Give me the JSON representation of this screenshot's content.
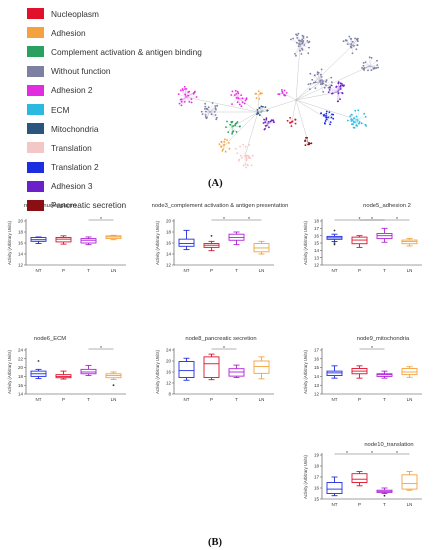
{
  "panel_a": {
    "label": "(A)",
    "legend": [
      {
        "label": "Nucleoplasm",
        "color": "#e0112b"
      },
      {
        "label": "Adhesion",
        "color": "#f4a23f"
      },
      {
        "label": "Complement activation & antigen binding",
        "color": "#2aa15e"
      },
      {
        "label": "Without function",
        "color": "#7d7fa3"
      },
      {
        "label": "Adhesion 2",
        "color": "#e22ce0"
      },
      {
        "label": "ECM",
        "color": "#2ab9e1"
      },
      {
        "label": "Mitochondria",
        "color": "#2b557f"
      },
      {
        "label": "Translation",
        "color": "#f4c7c7"
      },
      {
        "label": "Translation 2",
        "color": "#1b2ee0"
      },
      {
        "label": "Adhesion 3",
        "color": "#6b20c9"
      },
      {
        "label": "Pancreatic secretion",
        "color": "#8a0f12"
      }
    ]
  },
  "panel_b": {
    "label": "(B)"
  },
  "chart_data": [
    {
      "type": "box",
      "title": "node1_nucleoplasm",
      "ylabel": "Activity (Arbitrary Units)",
      "categories": [
        "NT",
        "P",
        "T",
        "LN"
      ],
      "ylim": [
        12,
        20
      ],
      "yticks": [
        12,
        14,
        16,
        18,
        20
      ],
      "colors": [
        "#1f2fe0",
        "#e0112b",
        "#b121d8",
        "#f4a23f"
      ],
      "boxes": [
        {
          "min": 15.9,
          "q1": 16.3,
          "median": 16.6,
          "q3": 17.0,
          "max": 17.1
        },
        {
          "min": 15.8,
          "q1": 16.2,
          "median": 16.7,
          "q3": 17.0,
          "max": 17.3
        },
        {
          "min": 15.7,
          "q1": 16.0,
          "median": 16.5,
          "q3": 16.8,
          "max": 17.1
        },
        {
          "min": 16.6,
          "q1": 16.8,
          "median": 17.1,
          "q3": 17.3,
          "max": 17.4
        }
      ],
      "outliers": [
        [],
        [],
        [],
        []
      ],
      "significance": [
        {
          "from": 2,
          "to": 3,
          "label": "*"
        }
      ]
    },
    {
      "type": "box",
      "title": "node3_complement activation & antigen presentation",
      "ylabel": "Activity (Arbitrary Units)",
      "categories": [
        "NT",
        "P",
        "T",
        "LN"
      ],
      "ylim": [
        12,
        20
      ],
      "yticks": [
        12,
        14,
        16,
        18,
        20
      ],
      "colors": [
        "#1f2fe0",
        "#e0112b",
        "#b121d8",
        "#f4a23f"
      ],
      "boxes": [
        {
          "min": 14.8,
          "q1": 15.4,
          "median": 15.9,
          "q3": 16.7,
          "max": 18.3
        },
        {
          "min": 14.6,
          "q1": 15.2,
          "median": 15.6,
          "q3": 15.9,
          "max": 16.3
        },
        {
          "min": 15.7,
          "q1": 16.5,
          "median": 17.0,
          "q3": 17.6,
          "max": 18.0
        },
        {
          "min": 14.0,
          "q1": 14.4,
          "median": 15.1,
          "q3": 15.9,
          "max": 16.3
        }
      ],
      "outliers": [
        [],
        [
          17.3
        ],
        [],
        []
      ],
      "significance": [
        {
          "from": 1,
          "to": 2,
          "label": "*"
        },
        {
          "from": 2,
          "to": 3,
          "label": "*"
        }
      ]
    },
    {
      "type": "box",
      "title": "node5_adhesion 2",
      "ylabel": "Activity (Arbitrary Units)",
      "categories": [
        "NT",
        "P",
        "T",
        "LN"
      ],
      "ylim": [
        12,
        18
      ],
      "yticks": [
        12,
        13,
        14,
        15,
        16,
        17,
        18
      ],
      "colors": [
        "#1f2fe0",
        "#e0112b",
        "#b121d8",
        "#f4a23f"
      ],
      "boxes": [
        {
          "min": 15.2,
          "q1": 15.5,
          "median": 15.7,
          "q3": 15.9,
          "max": 16.2
        },
        {
          "min": 14.4,
          "q1": 14.9,
          "median": 15.4,
          "q3": 15.8,
          "max": 16.0
        },
        {
          "min": 15.1,
          "q1": 15.6,
          "median": 16.0,
          "q3": 16.3,
          "max": 17.0
        },
        {
          "min": 14.6,
          "q1": 14.9,
          "median": 15.2,
          "q3": 15.4,
          "max": 15.6
        }
      ],
      "outliers": [
        [
          16.7,
          15.0,
          14.8
        ],
        [],
        [],
        []
      ],
      "significance": [
        {
          "from": 0,
          "to": 2,
          "label": "*"
        },
        {
          "from": 1,
          "to": 2,
          "label": "*"
        },
        {
          "from": 2,
          "to": 3,
          "label": "*"
        }
      ]
    },
    {
      "type": "box",
      "title": "node6_ECM",
      "ylabel": "Activity (Arbitrary Units)",
      "categories": [
        "NT",
        "P",
        "T",
        "LN"
      ],
      "ylim": [
        14,
        24
      ],
      "yticks": [
        14,
        16,
        18,
        20,
        22,
        24
      ],
      "colors": [
        "#1f2fe0",
        "#e0112b",
        "#b121d8",
        "#f4a23f"
      ],
      "boxes": [
        {
          "min": 17.5,
          "q1": 18.0,
          "median": 18.6,
          "q3": 19.2,
          "max": 19.6
        },
        {
          "min": 17.4,
          "q1": 17.7,
          "median": 18.0,
          "q3": 18.4,
          "max": 19.2
        },
        {
          "min": 18.2,
          "q1": 18.6,
          "median": 19.0,
          "q3": 19.6,
          "max": 20.5
        },
        {
          "min": 17.3,
          "q1": 17.7,
          "median": 18.2,
          "q3": 18.6,
          "max": 19.0
        }
      ],
      "outliers": [
        [
          21.5
        ],
        [],
        [],
        [
          16.0
        ]
      ],
      "significance": [
        {
          "from": 2,
          "to": 3,
          "label": "*"
        }
      ]
    },
    {
      "type": "box",
      "title": "node8_pancreatic secretion",
      "ylabel": "Activity (Arbitrary Units)",
      "categories": [
        "NT",
        "P",
        "T",
        "LN"
      ],
      "ylim": [
        8,
        24
      ],
      "yticks": [
        8,
        12,
        16,
        20,
        24
      ],
      "colors": [
        "#1f2fe0",
        "#e0112b",
        "#b121d8",
        "#f4a23f"
      ],
      "boxes": [
        {
          "min": 13.0,
          "q1": 14.0,
          "median": 16.5,
          "q3": 19.8,
          "max": 21.0
        },
        {
          "min": 13.2,
          "q1": 14.0,
          "median": 19.0,
          "q3": 21.5,
          "max": 22.5
        },
        {
          "min": 14.0,
          "q1": 14.5,
          "median": 16.0,
          "q3": 17.2,
          "max": 18.5
        },
        {
          "min": 13.5,
          "q1": 15.5,
          "median": 18.0,
          "q3": 20.0,
          "max": 21.5
        }
      ],
      "outliers": [
        [],
        [],
        [],
        []
      ],
      "significance": [
        {
          "from": 1,
          "to": 2,
          "label": "*"
        }
      ]
    },
    {
      "type": "box",
      "title": "node9_mitochondria",
      "ylabel": "Activity (Arbitrary Units)",
      "categories": [
        "NT",
        "P",
        "T",
        "LN"
      ],
      "ylim": [
        12,
        17
      ],
      "yticks": [
        12,
        13,
        14,
        15,
        16,
        17
      ],
      "colors": [
        "#1f2fe0",
        "#e0112b",
        "#b121d8",
        "#f4a23f"
      ],
      "boxes": [
        {
          "min": 13.8,
          "q1": 14.1,
          "median": 14.4,
          "q3": 14.6,
          "max": 15.2
        },
        {
          "min": 13.8,
          "q1": 14.3,
          "median": 14.6,
          "q3": 14.9,
          "max": 15.2
        },
        {
          "min": 13.8,
          "q1": 14.0,
          "median": 14.2,
          "q3": 14.3,
          "max": 14.6
        },
        {
          "min": 13.9,
          "q1": 14.2,
          "median": 14.5,
          "q3": 14.9,
          "max": 15.1
        }
      ],
      "outliers": [
        [],
        [],
        [],
        []
      ],
      "significance": [
        {
          "from": 1,
          "to": 2,
          "label": "*"
        }
      ]
    },
    {
      "type": "box",
      "title": "node10_translation",
      "ylabel": "Activity (Arbitrary Units)",
      "categories": [
        "NT",
        "P",
        "T",
        "LN"
      ],
      "ylim": [
        15,
        19
      ],
      "yticks": [
        15,
        16,
        17,
        18,
        19
      ],
      "colors": [
        "#1f2fe0",
        "#e0112b",
        "#b121d8",
        "#f4a23f"
      ],
      "boxes": [
        {
          "min": 15.3,
          "q1": 15.5,
          "median": 15.9,
          "q3": 16.5,
          "max": 17.0
        },
        {
          "min": 16.2,
          "q1": 16.5,
          "median": 16.8,
          "q3": 17.3,
          "max": 17.5
        },
        {
          "min": 15.5,
          "q1": 15.6,
          "median": 15.7,
          "q3": 15.8,
          "max": 16.0
        },
        {
          "min": 15.8,
          "q1": 15.9,
          "median": 16.4,
          "q3": 17.2,
          "max": 17.5
        }
      ],
      "outliers": [
        [],
        [],
        [
          15.3
        ],
        []
      ],
      "significance": [
        {
          "from": 0,
          "to": 1,
          "label": "*"
        },
        {
          "from": 1,
          "to": 2,
          "label": "*"
        },
        {
          "from": 2,
          "to": 3,
          "label": "*"
        }
      ]
    }
  ]
}
